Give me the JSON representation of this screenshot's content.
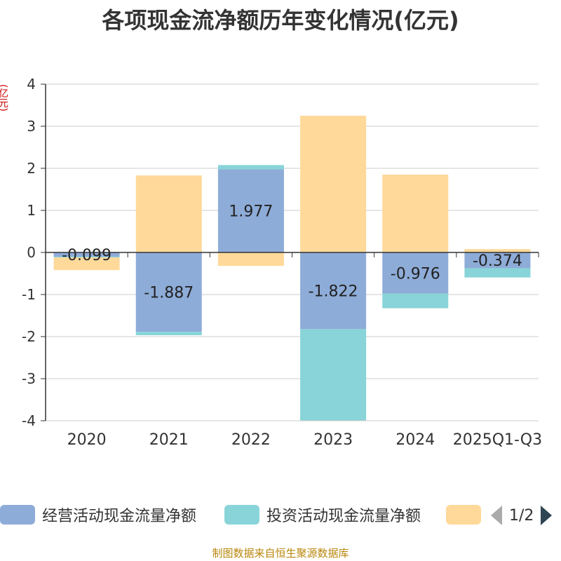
{
  "chart_data": {
    "type": "bar",
    "stacked": true,
    "title": "各项现金流净额历年变化情况(亿元)",
    "ylabel": "(亿元)",
    "xlabel": "",
    "ylim": [
      -4,
      4
    ],
    "yticks": [
      4,
      3,
      2,
      1,
      0,
      -1,
      -2,
      -3,
      -4
    ],
    "categories": [
      "2020",
      "2021",
      "2022",
      "2023",
      "2024",
      "2025Q1-Q3"
    ],
    "series": [
      {
        "name": "经营活动现金流量净额",
        "color": "#8eacd8",
        "values": [
          -0.099,
          -1.887,
          1.977,
          -1.822,
          -0.976,
          -0.374
        ],
        "labeled": true
      },
      {
        "name": "投资活动现金流量净额",
        "color": "#88d4d8",
        "values": [
          -0.02,
          -0.08,
          0.1,
          -2.17,
          -0.35,
          -0.22
        ],
        "labeled": false
      },
      {
        "name": "",
        "color": "#ffd99a",
        "values": [
          -0.3,
          1.83,
          -0.32,
          3.25,
          1.85,
          0.08
        ],
        "labeled": false
      }
    ],
    "data_labels": [
      "-0.099",
      "-1.887",
      "1.977",
      "-1.822",
      "-0.976",
      "-0.374"
    ],
    "legend_position": "bottom",
    "grid": true
  },
  "legend": {
    "items": [
      "经营活动现金流量净额",
      "投资活动现金流量净额",
      ""
    ],
    "pager": "1/2"
  },
  "source": "制图数据来自恒生聚源数据库"
}
